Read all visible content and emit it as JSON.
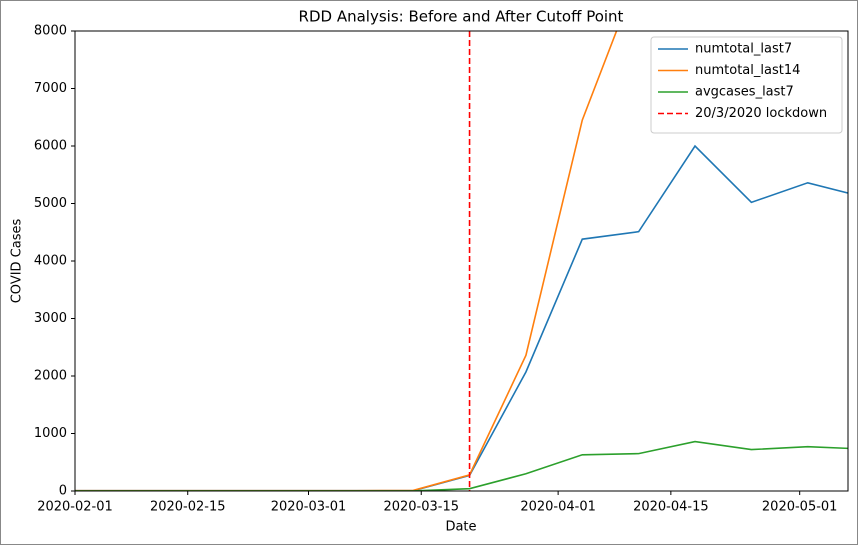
{
  "chart_data": {
    "type": "line",
    "title": "RDD Analysis: Before and After Cutoff Point",
    "x_label": "Date",
    "y_label": "COVID Cases",
    "x": [
      "2020-02-01",
      "2020-02-08",
      "2020-02-15",
      "2020-02-22",
      "2020-02-29",
      "2020-03-07",
      "2020-03-14",
      "2020-03-21",
      "2020-03-28",
      "2020-04-04",
      "2020-04-11",
      "2020-04-18",
      "2020-04-25",
      "2020-05-02",
      "2020-05-09"
    ],
    "series": [
      {
        "name": "numtotal_last7",
        "color": "#1f77b4",
        "values": [
          5,
          5,
          5,
          5,
          5,
          5,
          5,
          270,
          2070,
          4380,
          4510,
          6000,
          5020,
          5360,
          5110
        ]
      },
      {
        "name": "numtotal_last14",
        "color": "#ff7f0e",
        "values": [
          5,
          5,
          5,
          5,
          5,
          5,
          10,
          280,
          2360,
          6450,
          9000,
          null,
          null,
          null,
          null
        ]
      },
      {
        "name": "avgcases_last7",
        "color": "#2ca02c",
        "values": [
          1,
          1,
          1,
          1,
          1,
          1,
          1,
          40,
          300,
          630,
          650,
          860,
          720,
          770,
          730
        ]
      }
    ],
    "vlines": [
      {
        "x": "2020-03-21",
        "name": "20/3/2020 lockdown",
        "color": "#ff0000",
        "style": "dashed"
      }
    ],
    "xlim": [
      "2020-02-01",
      "2020-05-07"
    ],
    "xticks": [
      "2020-02-01",
      "2020-02-15",
      "2020-03-01",
      "2020-03-15",
      "2020-04-01",
      "2020-04-15",
      "2020-05-01"
    ],
    "ylim": [
      0,
      8000
    ],
    "yticks": [
      0,
      1000,
      2000,
      3000,
      4000,
      5000,
      6000,
      7000,
      8000
    ],
    "legend": "upper right"
  }
}
